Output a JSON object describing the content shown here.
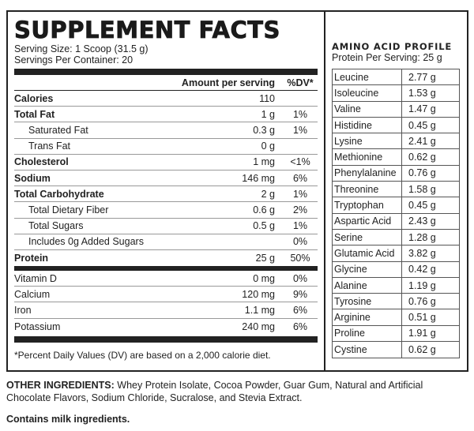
{
  "facts": {
    "title": "SUPPLEMENT FACTS",
    "serving_size": "Serving Size: 1 Scoop (31.5 g)",
    "servings_per_container": "Servings Per Container: 20",
    "header_amount": "Amount per serving",
    "header_dv": "%DV*",
    "rows": [
      {
        "name": "Calories",
        "amount": "110",
        "dv": ""
      },
      {
        "name": "Total Fat",
        "amount": "1 g",
        "dv": "1%"
      },
      {
        "name": "Saturated Fat",
        "amount": "0.3 g",
        "dv": "1%"
      },
      {
        "name": "Trans Fat",
        "amount": "0 g",
        "dv": ""
      },
      {
        "name": "Cholesterol",
        "amount": "1 mg",
        "dv": "<1%"
      },
      {
        "name": "Sodium",
        "amount": "146 mg",
        "dv": "6%"
      },
      {
        "name": "Total Carbohydrate",
        "amount": "2 g",
        "dv": "1%"
      },
      {
        "name": "Total Dietary Fiber",
        "amount": "0.6 g",
        "dv": "2%"
      },
      {
        "name": "Total Sugars",
        "amount": "0.5 g",
        "dv": "1%"
      },
      {
        "name": "Includes 0g Added Sugars",
        "amount": "",
        "dv": "0%"
      },
      {
        "name": "Protein",
        "amount": "25 g",
        "dv": "50%"
      }
    ],
    "minerals": [
      {
        "name": "Vitamin D",
        "amount": "0 mg",
        "dv": "0%"
      },
      {
        "name": "Calcium",
        "amount": "120 mg",
        "dv": "9%"
      },
      {
        "name": "Iron",
        "amount": "1.1 mg",
        "dv": "6%"
      },
      {
        "name": "Potassium",
        "amount": "240 mg",
        "dv": "6%"
      }
    ],
    "footnote": "*Percent Daily Values (DV) are based on a 2,000 calorie diet."
  },
  "amino": {
    "title": "AMINO ACID PROFILE",
    "subtitle": "Protein Per Serving: 25 g",
    "rows": [
      {
        "name": "Leucine",
        "value": "2.77 g"
      },
      {
        "name": "Isoleucine",
        "value": "1.53 g"
      },
      {
        "name": "Valine",
        "value": "1.47 g"
      },
      {
        "name": "Histidine",
        "value": "0.45 g"
      },
      {
        "name": "Lysine",
        "value": "2.41 g"
      },
      {
        "name": "Methionine",
        "value": "0.62 g"
      },
      {
        "name": "Phenylalanine",
        "value": "0.76 g"
      },
      {
        "name": "Threonine",
        "value": "1.58 g"
      },
      {
        "name": "Tryptophan",
        "value": "0.45 g"
      },
      {
        "name": "Aspartic Acid",
        "value": "2.43 g"
      },
      {
        "name": "Serine",
        "value": "1.28 g"
      },
      {
        "name": "Glutamic Acid",
        "value": "3.82 g"
      },
      {
        "name": "Glycine",
        "value": "0.42 g"
      },
      {
        "name": "Alanine",
        "value": "1.19 g"
      },
      {
        "name": "Tyrosine",
        "value": "0.76 g"
      },
      {
        "name": "Arginine",
        "value": "0.51 g"
      },
      {
        "name": "Proline",
        "value": "1.91 g"
      },
      {
        "name": "Cystine",
        "value": "0.62 g"
      }
    ]
  },
  "ingredients": {
    "label": "OTHER INGREDIENTS:",
    "text": " Whey Protein Isolate, Cocoa Powder, Guar Gum, Natural and Artificial Chocolate Flavors, Sodium Chloride, Sucralose, and Stevia Extract."
  },
  "allergen": "Contains milk ingredients."
}
